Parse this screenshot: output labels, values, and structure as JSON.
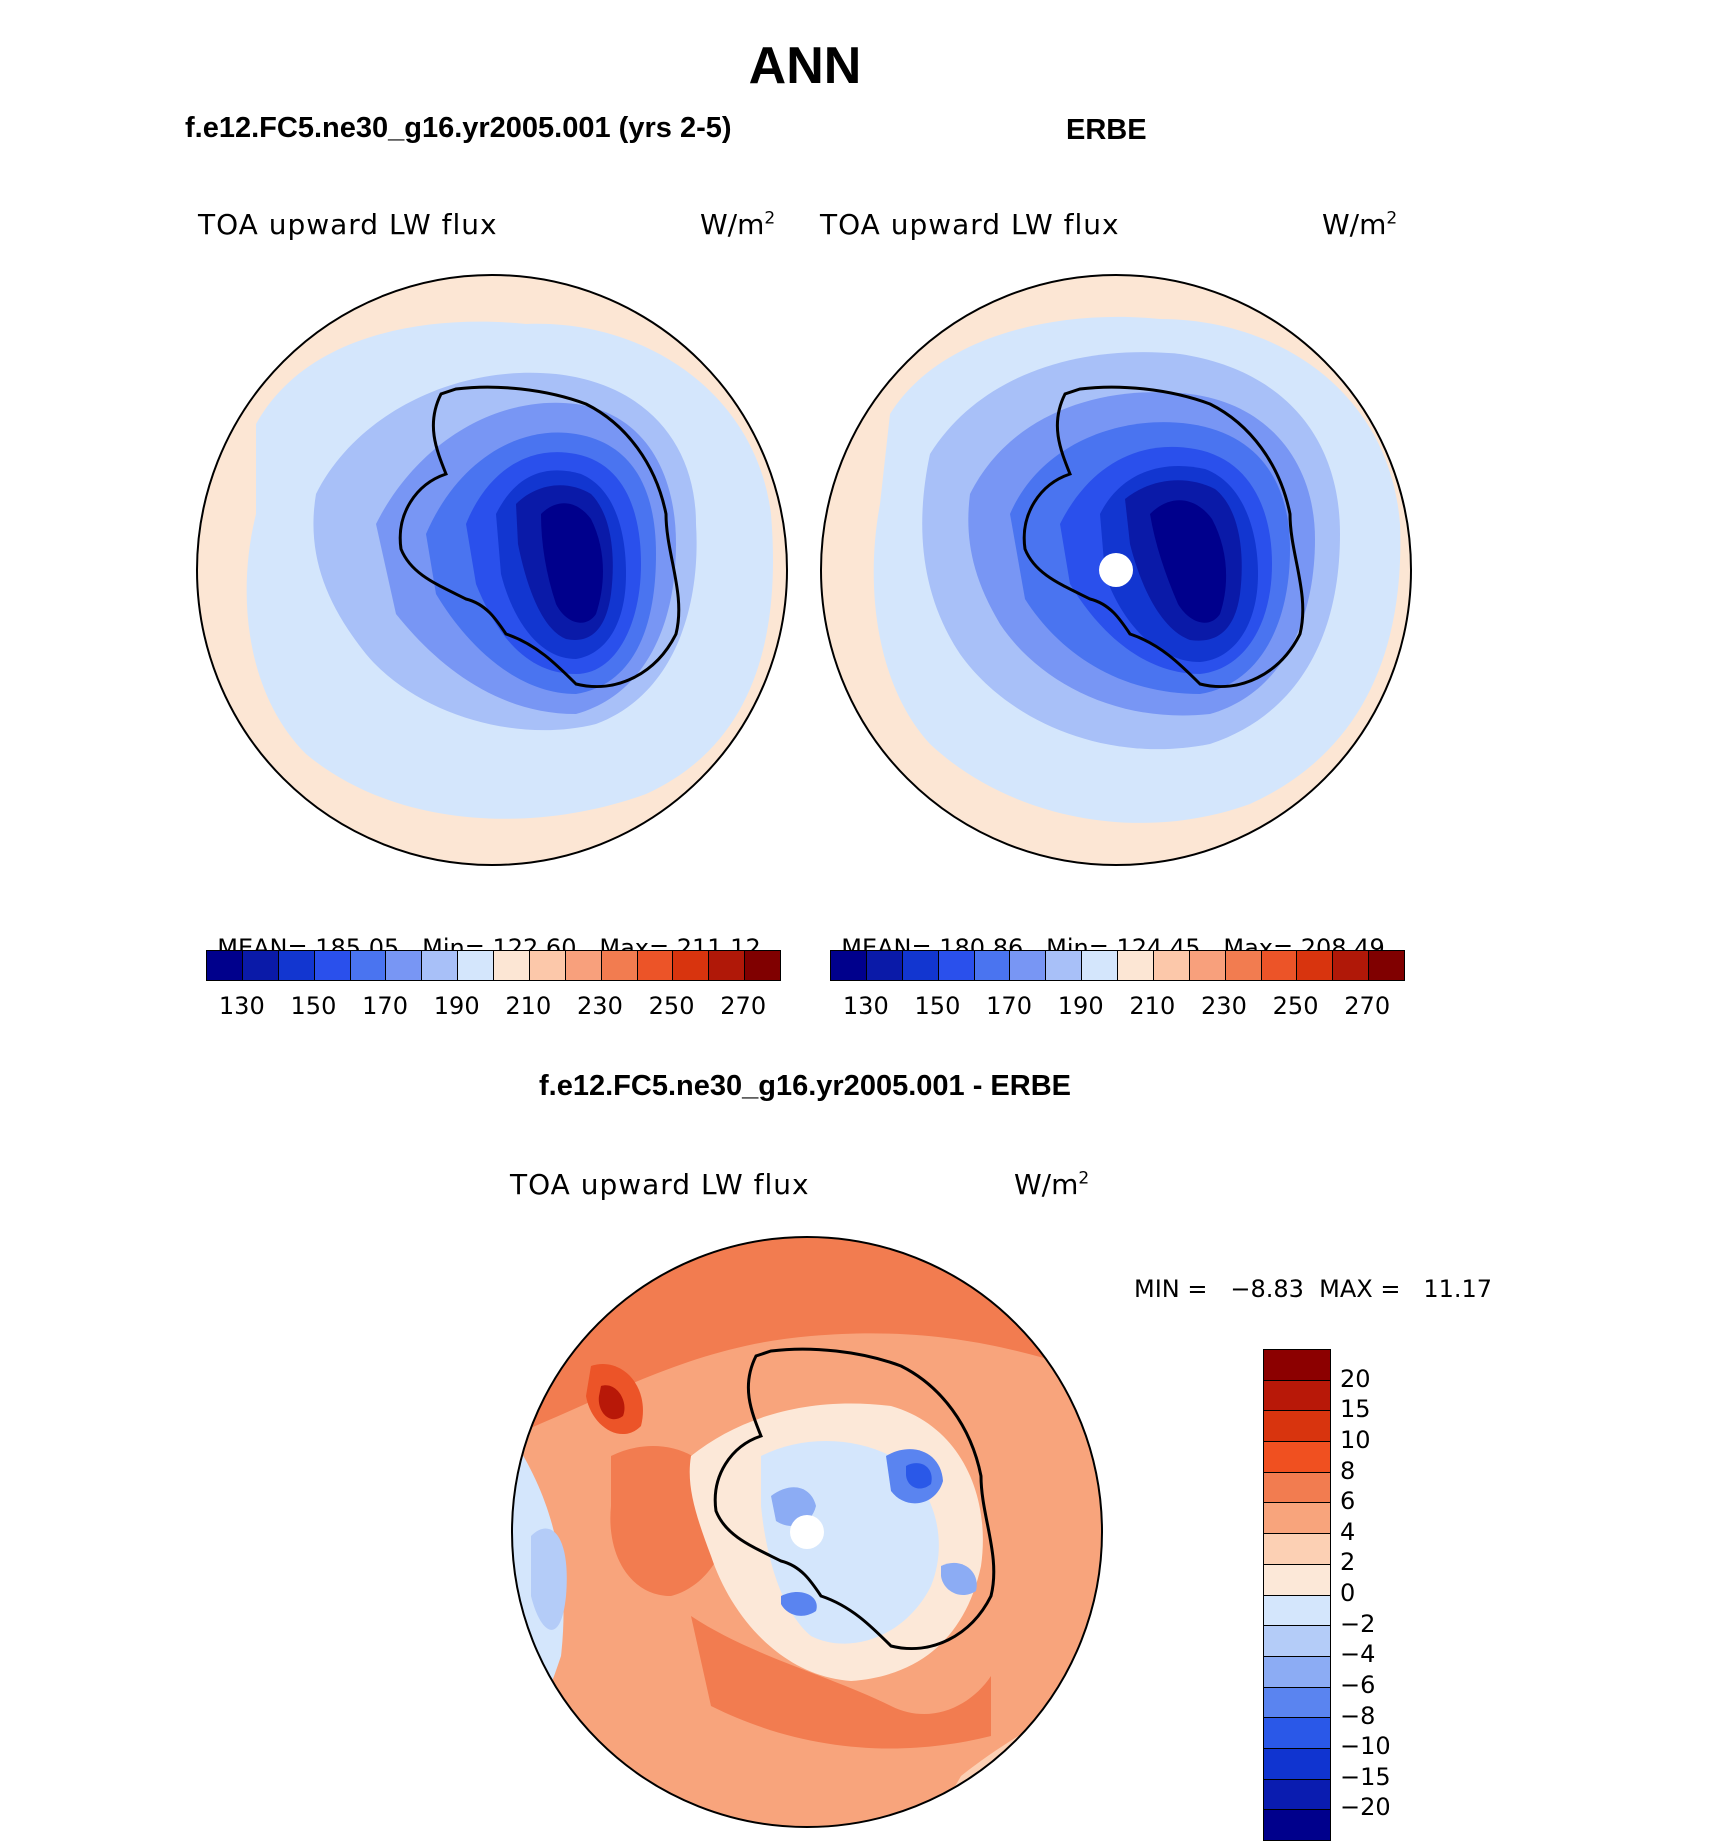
{
  "season": "ANN",
  "panels": {
    "model": {
      "title": "f.e12.FC5.ne30_g16.yr2005.001 (yrs 2-5)",
      "variable": "TOA upward LW flux",
      "units": "W/m",
      "units_sup": "2",
      "stats": {
        "mean_label": "MEAN=",
        "mean": "185.05",
        "min_label": "Min=",
        "min": "122.60",
        "max_label": "Max=",
        "max": "211.12"
      }
    },
    "obs": {
      "title": "ERBE",
      "variable": "TOA upward LW flux",
      "units": "W/m",
      "units_sup": "2",
      "stats": {
        "mean_label": "MEAN=",
        "mean": "180.86",
        "min_label": "Min=",
        "min": "124.45",
        "max_label": "Max=",
        "max": "208.49"
      }
    },
    "diff": {
      "title": "f.e12.FC5.ne30_g16.yr2005.001 - ERBE",
      "variable": "TOA upward LW flux",
      "units": "W/m",
      "units_sup": "2",
      "minmax": "MIN =   −8.83  MAX =   11.17"
    }
  },
  "colorbar_main": {
    "tick_labels": [
      "130",
      "150",
      "170",
      "190",
      "210",
      "230",
      "250",
      "270"
    ],
    "colors": [
      "#00008c",
      "#0a1aa8",
      "#1236d0",
      "#2a50ec",
      "#4a74f0",
      "#7896f4",
      "#a8c0f8",
      "#d4e6fc",
      "#fce6d4",
      "#fcc8aa",
      "#f8a07c",
      "#f27c50",
      "#ec5428",
      "#d8340e",
      "#b01808",
      "#800000"
    ]
  },
  "colorbar_diff": {
    "tick_labels": [
      "20",
      "15",
      "10",
      "8",
      "6",
      "4",
      "2",
      "0",
      "−2",
      "−4",
      "−6",
      "−8",
      "−10",
      "−15",
      "−20"
    ],
    "colors": [
      "#8c0000",
      "#b81808",
      "#d8340e",
      "#f05020",
      "#f27c50",
      "#f8a47c",
      "#fcd0b4",
      "#fce8d8",
      "#d4e6fc",
      "#b4ccf8",
      "#8cacf4",
      "#5a84f0",
      "#2a58e8",
      "#1034d0",
      "#0a1cb0",
      "#00008c"
    ]
  }
}
